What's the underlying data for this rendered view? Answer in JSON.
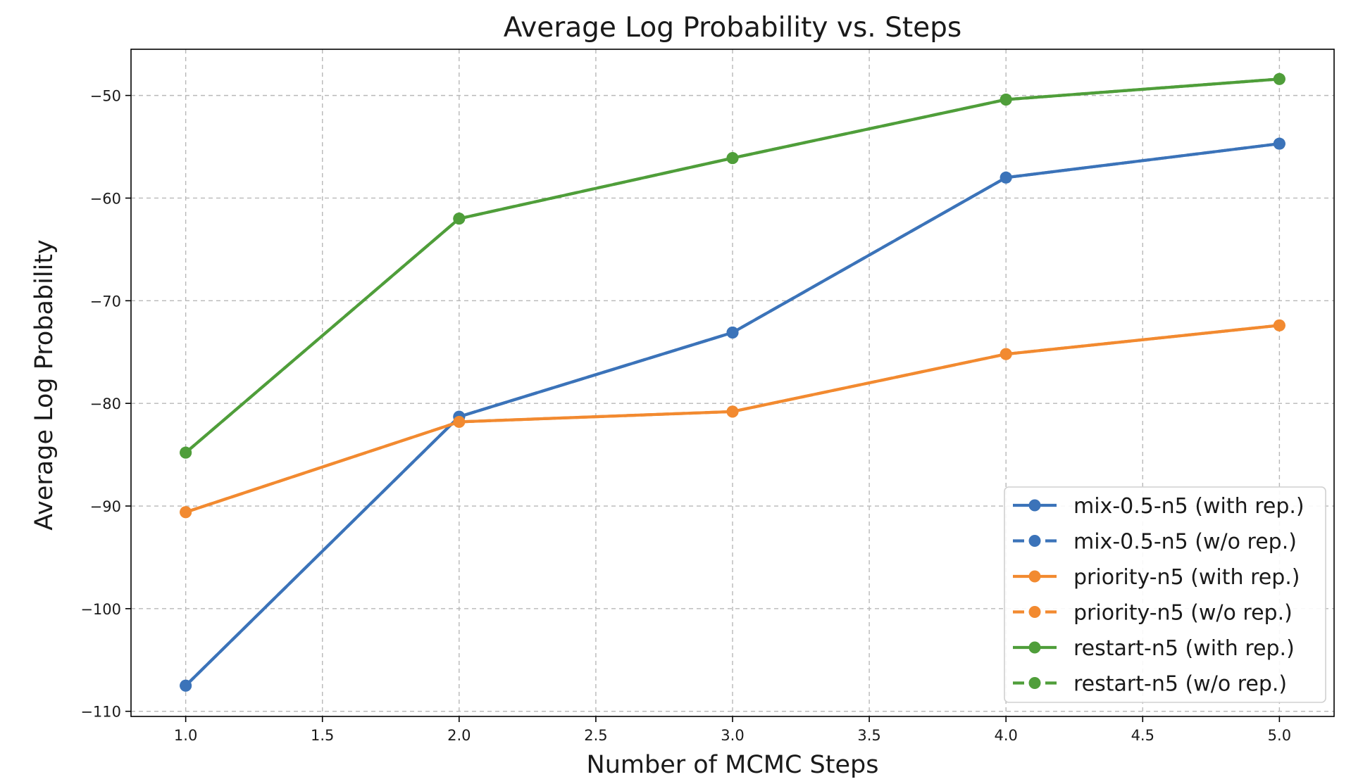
{
  "chart_data": {
    "type": "line",
    "title": "Average Log Probability vs. Steps",
    "xlabel": "Number of MCMC Steps",
    "ylabel": "Average Log Probability",
    "xlim": [
      0.8,
      5.2
    ],
    "ylim": [
      -110.5,
      -45.5
    ],
    "xticks": [
      1.0,
      1.5,
      2.0,
      2.5,
      3.0,
      3.5,
      4.0,
      4.5,
      5.0
    ],
    "xtick_labels": [
      "1.0",
      "1.5",
      "2.0",
      "2.5",
      "3.0",
      "3.5",
      "4.0",
      "4.5",
      "5.0"
    ],
    "yticks": [
      -110,
      -100,
      -90,
      -80,
      -70,
      -60,
      -50
    ],
    "ytick_labels": [
      "−110",
      "−100",
      "−90",
      "−80",
      "−70",
      "−60",
      "−50"
    ],
    "grid": true,
    "legend_position": "bottom-right",
    "x": [
      1.0,
      2.0,
      3.0,
      4.0,
      5.0
    ],
    "series": [
      {
        "name": "mix-0.5-n5 (with rep.)",
        "values": [
          -107.5,
          -81.3,
          -73.1,
          -58.0,
          -54.7
        ],
        "color": "#3b73b9",
        "linestyle": "solid"
      },
      {
        "name": "mix-0.5-n5 (w/o rep.)",
        "values": [
          -107.5,
          -81.3,
          -73.1,
          -58.0,
          -54.7
        ],
        "color": "#3b73b9",
        "linestyle": "dashed"
      },
      {
        "name": "priority-n5 (with rep.)",
        "values": [
          -90.6,
          -81.8,
          -80.8,
          -75.2,
          -72.4
        ],
        "color": "#f28a30",
        "linestyle": "solid"
      },
      {
        "name": "priority-n5 (w/o rep.)",
        "values": [
          -90.6,
          -81.8,
          -80.8,
          -75.2,
          -72.4
        ],
        "color": "#f28a30",
        "linestyle": "dashed"
      },
      {
        "name": "restart-n5 (with rep.)",
        "values": [
          -84.8,
          -62.0,
          -56.1,
          -50.4,
          -48.4
        ],
        "color": "#4f9e3a",
        "linestyle": "solid"
      },
      {
        "name": "restart-n5 (w/o rep.)",
        "values": [
          -84.8,
          -62.0,
          -56.1,
          -50.4,
          -48.4
        ],
        "color": "#4f9e3a",
        "linestyle": "dashed"
      }
    ]
  }
}
